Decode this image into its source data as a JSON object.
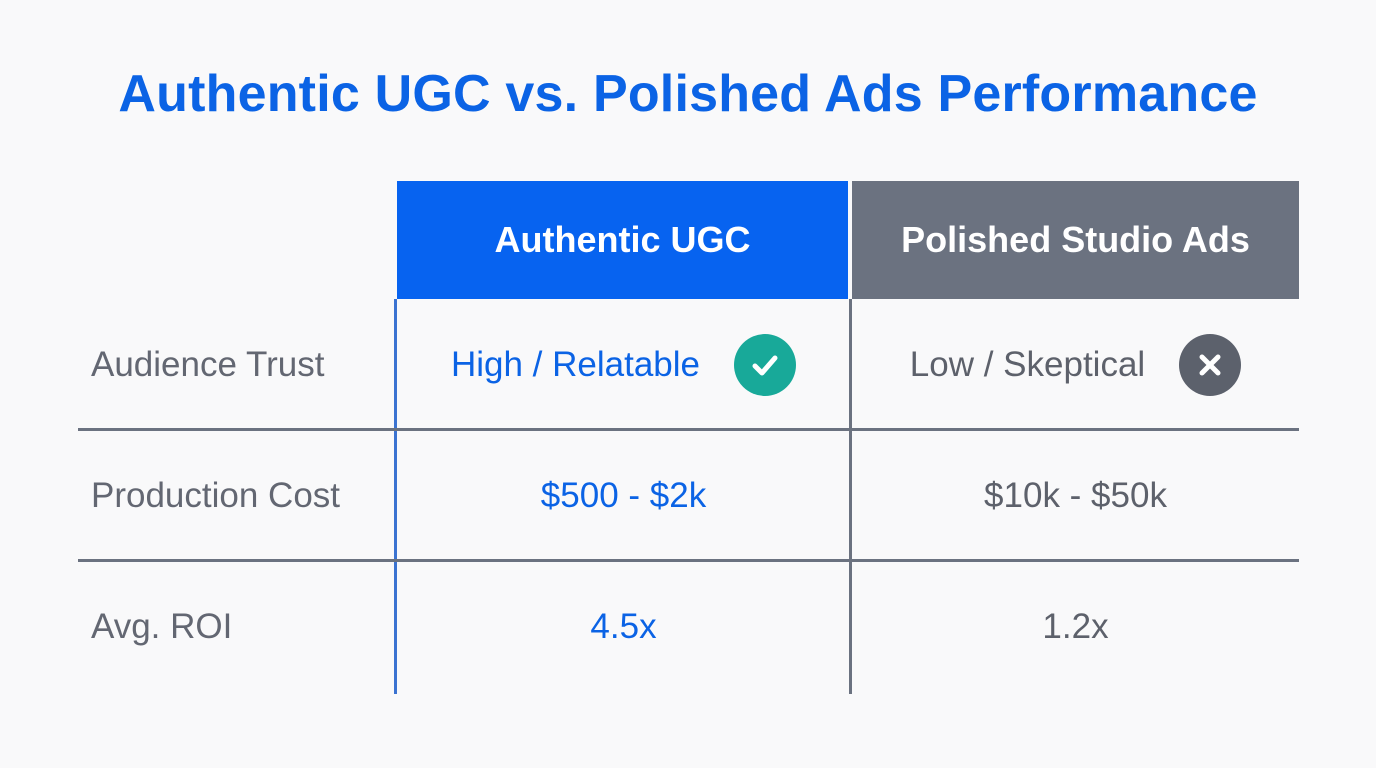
{
  "title": "Authentic UGC vs. Polished Ads Performance",
  "colors": {
    "accent_blue": "#0b63e5",
    "header_blue": "#0763f0",
    "header_gray": "#6b7280",
    "check_teal": "#18a999",
    "x_gray": "#5c616c",
    "label_gray": "#636772",
    "value_gray": "#5d616b",
    "grid_gray": "#6b7280"
  },
  "table": {
    "columns": [
      {
        "label": "Authentic UGC",
        "icon": "check-icon"
      },
      {
        "label": "Polished Studio Ads",
        "icon": "x-icon"
      }
    ],
    "rows": [
      {
        "label": "Audience Trust",
        "ugc": "High / Relatable",
        "polished": "Low / Skeptical"
      },
      {
        "label": "Production Cost",
        "ugc": "$500 - $2k",
        "polished": "$10k - $50k"
      },
      {
        "label": "Avg. ROI",
        "ugc": "4.5x",
        "polished": "1.2x"
      }
    ]
  }
}
